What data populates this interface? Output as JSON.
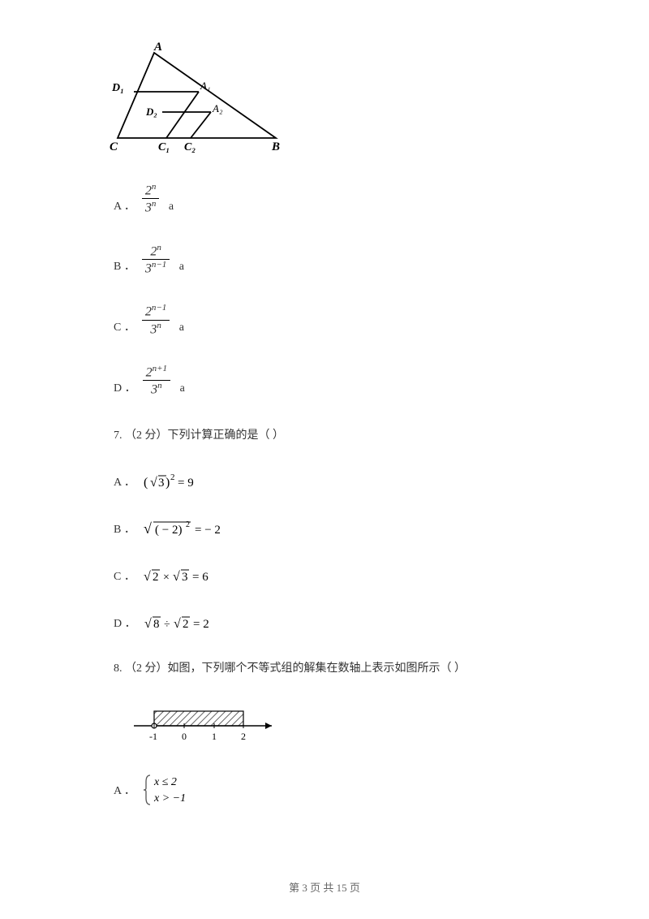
{
  "triangle": {
    "vertices": {
      "A": "A",
      "B": "B",
      "C": "C",
      "D1": "D₁",
      "A1": "A₁",
      "D2": "D₂",
      "A2": "A₂",
      "C1": "C₁",
      "C2": "C₂"
    },
    "line_color": "#000000",
    "line_width": 1.5
  },
  "fraction_options": [
    {
      "label": "A ．",
      "numerator": "2",
      "num_exp": "n",
      "denominator": "3",
      "den_exp": "n",
      "suffix": "a"
    },
    {
      "label": "B ．",
      "numerator": "2",
      "num_exp": "n",
      "denominator": "3",
      "den_exp": "n−1",
      "suffix": "a"
    },
    {
      "label": "C ．",
      "numerator": "2",
      "num_exp": "n−1",
      "denominator": "3",
      "den_exp": "n",
      "suffix": "a"
    },
    {
      "label": "D ．",
      "numerator": "2",
      "num_exp": "n+1",
      "denominator": "3",
      "den_exp": "n",
      "suffix": "a"
    }
  ],
  "q7": {
    "text": "7.  （2 分）下列计算正确的是（     ）",
    "options": [
      {
        "label": "A ．",
        "expr": "(√3)² = 9"
      },
      {
        "label": "B ．",
        "expr": "√(−2)² = −2"
      },
      {
        "label": "C ．",
        "expr": "√2 × √3 = 6"
      },
      {
        "label": "D ．",
        "expr": "√8 ÷ √2 = 2"
      }
    ]
  },
  "q8": {
    "text": "8.  （2 分）如图，下列哪个不等式组的解集在数轴上表示如图所示（     ）",
    "number_line": {
      "ticks": [
        "-1",
        "0",
        "1",
        "2"
      ],
      "shade_start": -1,
      "shade_end": 2,
      "open_at": -1,
      "closed_at": 2,
      "hatch_color": "#808080",
      "axis_color": "#000000"
    },
    "optionA": {
      "label": "A ．",
      "line1": "x ≤ 2",
      "line2": "x > −1"
    }
  },
  "footer": "第 3 页 共 15 页"
}
